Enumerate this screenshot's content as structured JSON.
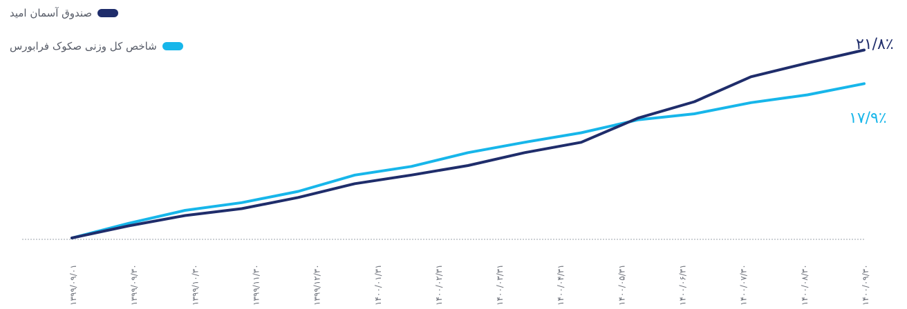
{
  "colors": {
    "fund": "#1f2d6b",
    "index": "#17b6ea",
    "baseline": "#9aa0aa",
    "tick": "#6b6f78"
  },
  "legend": [
    {
      "label": "صندوق آسمان امید",
      "color": "#1f2d6b"
    },
    {
      "label": "شاخص کل وزنی صکوک فرابورس",
      "color": "#17b6ea"
    }
  ],
  "chart_data": {
    "type": "line",
    "title": "",
    "xlabel": "",
    "ylabel": "",
    "grid": false,
    "legend_position": "top-left",
    "x_ticks": [
      "۱۳۹۹/۰۹/۰۱",
      "۱۳۹۹/۰۹/۳۰",
      "۱۳۹۹/۱۰/۳۰",
      "۱۳۹۹/۱۱/۳۰",
      "۱۳۹۹/۱۲/۳۰",
      "۱۴۰۰/۰۱/۳۱",
      "۱۴۰۰/۰۲/۳۱",
      "۱۴۰۰/۰۳/۳۱",
      "۱۴۰۰/۰۴/۳۱",
      "۱۴۰۰/۰۵/۳۱",
      "۱۴۰۰/۰۶/۳۱",
      "۱۴۰۰/۰۷/۳۰",
      "۱۴۰۰/۰۸/۳۰",
      "۱۴۰۰/۰۹/۳۰"
    ],
    "ylim": [
      0,
      22
    ],
    "series": [
      {
        "name": "صندوق آسمان امید",
        "end_label": "۲۱/۸٪",
        "values": [
          0,
          1.4,
          2.6,
          3.4,
          4.7,
          6.3,
          7.3,
          8.4,
          9.9,
          11.1,
          13.9,
          15.8,
          18.7,
          20.3,
          21.8
        ]
      },
      {
        "name": "شاخص کل وزنی صکوک فرابورس",
        "end_label": "۱۷/۹٪",
        "values": [
          0,
          1.7,
          3.2,
          4.1,
          5.4,
          7.3,
          8.3,
          9.9,
          11.1,
          12.2,
          13.7,
          14.4,
          15.7,
          16.6,
          17.9
        ]
      }
    ]
  }
}
